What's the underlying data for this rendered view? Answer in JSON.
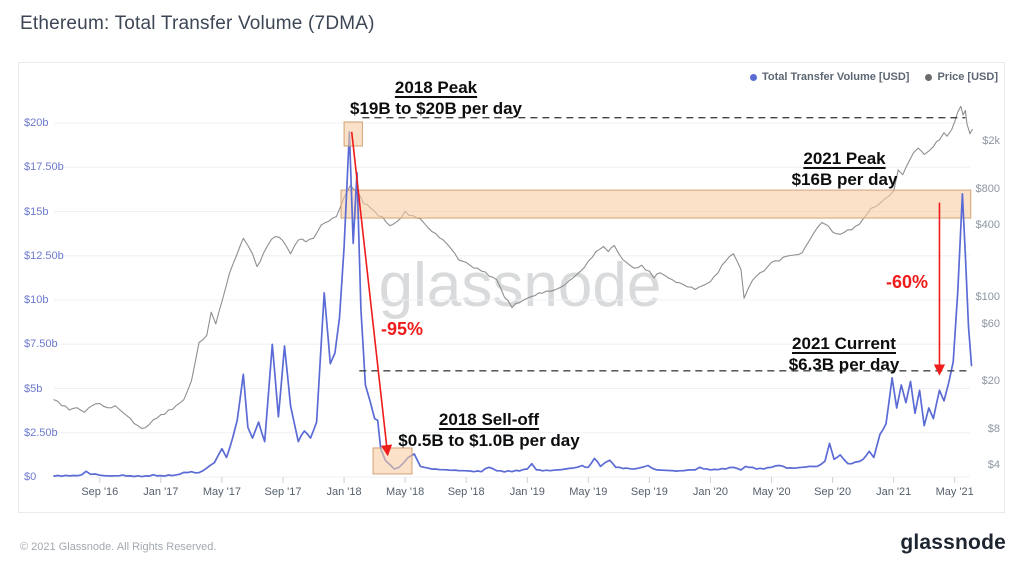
{
  "page": {
    "title": "Ethereum: Total Transfer Volume (7DMA)",
    "watermark": "glassnode",
    "footer_copyright": "© 2021 Glassnode. All Rights Reserved.",
    "footer_logo": "glassnode"
  },
  "colors": {
    "volume": "#5b6bd5",
    "price": "#8f8f8f",
    "price_legend_dot": "#6b6b6b",
    "annotation_red": "#ee1c1c",
    "highlight_fill": "rgba(247,205,164,0.6)",
    "highlight_border": "rgba(206,154,104,0.9)",
    "dashed_line": "#3f4448",
    "grid": "#eef0f3",
    "tick": "#ccd1d7"
  },
  "legend": [
    {
      "label": "Total Transfer Volume [USD]",
      "color": "#5b6bd5"
    },
    {
      "label": "Price [USD]",
      "color": "#6b6b6b"
    }
  ],
  "chart_data": {
    "type": "line",
    "title": "Ethereum: Total Transfer Volume (7DMA)",
    "x_axis": {
      "x_unit": "months since 2016-06",
      "ticks": [
        "Sep '16",
        "Jan '17",
        "May '17",
        "Sep '17",
        "Jan '18",
        "May '18",
        "Sep '18",
        "Jan '19",
        "May '19",
        "Sep '19",
        "Jan '20",
        "May '20",
        "Sep '20",
        "Jan '21",
        "May '21"
      ],
      "tick_months": [
        3,
        7,
        11,
        15,
        19,
        23,
        27,
        31,
        35,
        39,
        43,
        47,
        51,
        55,
        59
      ],
      "range_months": [
        0,
        60.2
      ]
    },
    "y_left": {
      "unit": "USD billions per day",
      "scale": "linear",
      "labels": [
        "$0",
        "$2.50b",
        "$5b",
        "$7.50b",
        "$10b",
        "$12.50b",
        "$15b",
        "$17.50b",
        "$20b"
      ],
      "values": [
        0,
        2.5,
        5,
        7.5,
        10,
        12.5,
        15,
        17.5,
        20
      ],
      "range": [
        0,
        20
      ]
    },
    "y_right": {
      "unit": "USD",
      "scale": "log",
      "labels": [
        "$4",
        "$8",
        "$20",
        "$60",
        "$100",
        "$400",
        "$800",
        "$2k"
      ],
      "values": [
        4,
        8,
        20,
        60,
        100,
        400,
        800,
        2000
      ]
    },
    "series": [
      {
        "name": "Price [USD]",
        "axis": "right",
        "color": "#8f8f8f",
        "points": [
          [
            0,
            14
          ],
          [
            0.5,
            12.5
          ],
          [
            1,
            11.5
          ],
          [
            1.5,
            12
          ],
          [
            2,
            11
          ],
          [
            2.5,
            12.5
          ],
          [
            3,
            13
          ],
          [
            3.5,
            12
          ],
          [
            4,
            12.5
          ],
          [
            4.5,
            11
          ],
          [
            5,
            9.8
          ],
          [
            5.5,
            8.5
          ],
          [
            6,
            8.2
          ],
          [
            6.5,
            9.5
          ],
          [
            7,
            10.5
          ],
          [
            7.5,
            11.5
          ],
          [
            8,
            12.5
          ],
          [
            8.5,
            14
          ],
          [
            9,
            20
          ],
          [
            9.5,
            42
          ],
          [
            10,
            48
          ],
          [
            10.3,
            75
          ],
          [
            10.6,
            60
          ],
          [
            11,
            92
          ],
          [
            11.5,
            160
          ],
          [
            12,
            230
          ],
          [
            12.4,
            310
          ],
          [
            12.7,
            270
          ],
          [
            13,
            230
          ],
          [
            13.3,
            180
          ],
          [
            13.7,
            230
          ],
          [
            14,
            270
          ],
          [
            14.5,
            320
          ],
          [
            15,
            295
          ],
          [
            15.5,
            230
          ],
          [
            16,
            300
          ],
          [
            16.5,
            290
          ],
          [
            17,
            310
          ],
          [
            17.5,
            400
          ],
          [
            18,
            430
          ],
          [
            18.5,
            470
          ],
          [
            19,
            680
          ],
          [
            19.4,
            850
          ],
          [
            19.7,
            780
          ],
          [
            20,
            720
          ],
          [
            20.3,
            600
          ],
          [
            20.7,
            560
          ],
          [
            21,
            520
          ],
          [
            21.5,
            470
          ],
          [
            22,
            395
          ],
          [
            22.5,
            430
          ],
          [
            23,
            520
          ],
          [
            23.5,
            480
          ],
          [
            24,
            450
          ],
          [
            24.5,
            380
          ],
          [
            25,
            340
          ],
          [
            25.5,
            300
          ],
          [
            26,
            255
          ],
          [
            26.5,
            205
          ],
          [
            27,
            195
          ],
          [
            27.5,
            175
          ],
          [
            28,
            165
          ],
          [
            28.5,
            150
          ],
          [
            29,
            140
          ],
          [
            29.5,
            100
          ],
          [
            30,
            82
          ],
          [
            30.5,
            90
          ],
          [
            31,
            98
          ],
          [
            31.5,
            103
          ],
          [
            32,
            108
          ],
          [
            32.5,
            112
          ],
          [
            33,
            118
          ],
          [
            33.5,
            128
          ],
          [
            34,
            145
          ],
          [
            34.5,
            165
          ],
          [
            35,
            200
          ],
          [
            35.5,
            240
          ],
          [
            36,
            265
          ],
          [
            36.3,
            240
          ],
          [
            36.7,
            270
          ],
          [
            37,
            230
          ],
          [
            37.5,
            195
          ],
          [
            38,
            175
          ],
          [
            38.5,
            185
          ],
          [
            39,
            165
          ],
          [
            39.3,
            145
          ],
          [
            39.7,
            160
          ],
          [
            40,
            152
          ],
          [
            40.5,
            140
          ],
          [
            41,
            132
          ],
          [
            41.5,
            122
          ],
          [
            42,
            116
          ],
          [
            42.5,
            125
          ],
          [
            43,
            135
          ],
          [
            43.5,
            160
          ],
          [
            44,
            200
          ],
          [
            44.5,
            230
          ],
          [
            45,
            170
          ],
          [
            45.2,
            98
          ],
          [
            45.5,
            120
          ],
          [
            46,
            150
          ],
          [
            46.5,
            165
          ],
          [
            47,
            195
          ],
          [
            47.5,
            200
          ],
          [
            48,
            220
          ],
          [
            48.5,
            225
          ],
          [
            49,
            235
          ],
          [
            49.5,
            300
          ],
          [
            50,
            380
          ],
          [
            50.3,
            420
          ],
          [
            50.7,
            395
          ],
          [
            51,
            350
          ],
          [
            51.5,
            335
          ],
          [
            52,
            365
          ],
          [
            52.5,
            390
          ],
          [
            53,
            450
          ],
          [
            53.5,
            550
          ],
          [
            54,
            590
          ],
          [
            54.3,
            640
          ],
          [
            54.7,
            700
          ],
          [
            55,
            770
          ],
          [
            55.3,
            1150
          ],
          [
            55.6,
            1050
          ],
          [
            56,
            1350
          ],
          [
            56.3,
            1600
          ],
          [
            56.6,
            1750
          ],
          [
            57,
            1550
          ],
          [
            57.3,
            1650
          ],
          [
            57.6,
            1800
          ],
          [
            58,
            2050
          ],
          [
            58.3,
            2350
          ],
          [
            58.5,
            2200
          ],
          [
            58.8,
            2500
          ],
          [
            59,
            2900
          ],
          [
            59.2,
            3500
          ],
          [
            59.4,
            3900
          ],
          [
            59.55,
            3300
          ],
          [
            59.7,
            3600
          ],
          [
            59.8,
            2800
          ],
          [
            60,
            2300
          ],
          [
            60.15,
            2500
          ]
        ]
      },
      {
        "name": "Total Transfer Volume [USD]",
        "axis": "left",
        "color": "#5b6bd5",
        "points": [
          [
            0,
            0.05
          ],
          [
            1,
            0.06
          ],
          [
            1.8,
            0.12
          ],
          [
            2.1,
            0.32
          ],
          [
            2.4,
            0.15
          ],
          [
            3,
            0.1
          ],
          [
            4,
            0.07
          ],
          [
            5,
            0.06
          ],
          [
            6,
            0.06
          ],
          [
            7,
            0.08
          ],
          [
            8,
            0.12
          ],
          [
            9,
            0.3
          ],
          [
            9.5,
            0.25
          ],
          [
            10,
            0.5
          ],
          [
            10.5,
            0.8
          ],
          [
            11,
            1.6
          ],
          [
            11.3,
            1.1
          ],
          [
            11.7,
            2.2
          ],
          [
            12,
            3.2
          ],
          [
            12.4,
            5.8
          ],
          [
            12.7,
            2.8
          ],
          [
            13,
            2.2
          ],
          [
            13.4,
            3.1
          ],
          [
            13.8,
            2.0
          ],
          [
            14.3,
            7.5
          ],
          [
            14.7,
            3.4
          ],
          [
            15.1,
            7.4
          ],
          [
            15.5,
            4.0
          ],
          [
            16,
            2.0
          ],
          [
            16.4,
            2.6
          ],
          [
            16.8,
            2.2
          ],
          [
            17.2,
            3.1
          ],
          [
            17.7,
            10.4
          ],
          [
            18.1,
            6.4
          ],
          [
            18.4,
            7.0
          ],
          [
            18.7,
            9.0
          ],
          [
            19.0,
            13.0
          ],
          [
            19.35,
            19.5
          ],
          [
            19.6,
            13.2
          ],
          [
            19.85,
            17.2
          ],
          [
            20.1,
            9.5
          ],
          [
            20.4,
            5.2
          ],
          [
            20.7,
            4.3
          ],
          [
            21.0,
            3.3
          ],
          [
            21.2,
            3.2
          ],
          [
            21.4,
            1.6
          ],
          [
            21.7,
            0.95
          ],
          [
            22.0,
            0.7
          ],
          [
            22.3,
            0.45
          ],
          [
            22.6,
            0.55
          ],
          [
            22.9,
            0.8
          ],
          [
            23.2,
            1.1
          ],
          [
            23.6,
            1.3
          ],
          [
            24,
            0.6
          ],
          [
            24.5,
            0.5
          ],
          [
            25,
            0.45
          ],
          [
            26,
            0.38
          ],
          [
            27,
            0.35
          ],
          [
            28,
            0.3
          ],
          [
            28.5,
            0.55
          ],
          [
            29,
            0.35
          ],
          [
            30,
            0.3
          ],
          [
            31,
            0.45
          ],
          [
            31.3,
            0.75
          ],
          [
            31.6,
            0.4
          ],
          [
            32,
            0.35
          ],
          [
            33,
            0.4
          ],
          [
            34,
            0.5
          ],
          [
            34.6,
            0.65
          ],
          [
            35,
            0.55
          ],
          [
            35.4,
            1.05
          ],
          [
            35.8,
            0.6
          ],
          [
            36.4,
            0.95
          ],
          [
            36.8,
            0.55
          ],
          [
            37.5,
            0.5
          ],
          [
            38,
            0.45
          ],
          [
            38.9,
            0.65
          ],
          [
            39.5,
            0.4
          ],
          [
            40,
            0.38
          ],
          [
            41,
            0.35
          ],
          [
            42,
            0.4
          ],
          [
            42.3,
            0.55
          ],
          [
            43,
            0.4
          ],
          [
            44,
            0.45
          ],
          [
            44.5,
            0.55
          ],
          [
            45,
            0.4
          ],
          [
            45.3,
            0.6
          ],
          [
            46,
            0.45
          ],
          [
            47,
            0.55
          ],
          [
            47.5,
            0.65
          ],
          [
            48,
            0.5
          ],
          [
            49,
            0.55
          ],
          [
            50,
            0.6
          ],
          [
            50.5,
            0.9
          ],
          [
            50.8,
            1.9
          ],
          [
            51.1,
            1.0
          ],
          [
            51.5,
            1.25
          ],
          [
            52,
            0.75
          ],
          [
            52.5,
            0.85
          ],
          [
            53,
            1.0
          ],
          [
            53.4,
            1.45
          ],
          [
            53.7,
            1.1
          ],
          [
            54.1,
            2.4
          ],
          [
            54.5,
            3.0
          ],
          [
            54.9,
            5.6
          ],
          [
            55.2,
            3.9
          ],
          [
            55.5,
            5.2
          ],
          [
            55.8,
            4.2
          ],
          [
            56.1,
            5.4
          ],
          [
            56.4,
            3.6
          ],
          [
            56.7,
            4.9
          ],
          [
            57.0,
            2.9
          ],
          [
            57.3,
            3.9
          ],
          [
            57.6,
            3.3
          ],
          [
            58.0,
            4.9
          ],
          [
            58.3,
            4.3
          ],
          [
            58.6,
            5.3
          ],
          [
            58.9,
            6.5
          ],
          [
            59.2,
            10.5
          ],
          [
            59.5,
            16.0
          ],
          [
            59.7,
            12.5
          ],
          [
            59.9,
            8.5
          ],
          [
            60.1,
            6.3
          ]
        ]
      }
    ],
    "annotations": {
      "peak2018": {
        "title": "2018 Peak",
        "subtitle": "$19B to $20B per day",
        "box": {
          "m": [
            19.0,
            20.2
          ],
          "b": [
            18.7,
            20.06
          ]
        }
      },
      "peak2021": {
        "title": "2021 Peak",
        "subtitle": "$16B per day"
      },
      "current2021": {
        "title": "2021 Current",
        "subtitle": "$6.3B per day"
      },
      "selloff2018": {
        "title": "2018 Sell-off",
        "subtitle": "$0.5B to $1.0B per day",
        "box": {
          "m": [
            20.9,
            23.45
          ],
          "b": [
            0.17,
            1.64
          ]
        }
      },
      "band2021": {
        "m": [
          18.8,
          60.05
        ],
        "b": [
          14.63,
          16.21
        ]
      },
      "dash_top": {
        "level_b": 20.3,
        "m": [
          20.2,
          59.7
        ]
      },
      "dash_current": {
        "level_b": 6.0,
        "m": [
          20.0,
          59.8
        ]
      },
      "drop2018": {
        "label": "-95%",
        "arrow": {
          "from": [
            19.5,
            19.5
          ],
          "to": [
            21.85,
            1.3
          ]
        }
      },
      "drop2021": {
        "label": "-60%",
        "arrow": {
          "from": [
            58.0,
            15.5
          ],
          "to": [
            58.0,
            5.85
          ]
        }
      }
    },
    "legend_position": "top-right",
    "grid": "horizontal-only"
  }
}
